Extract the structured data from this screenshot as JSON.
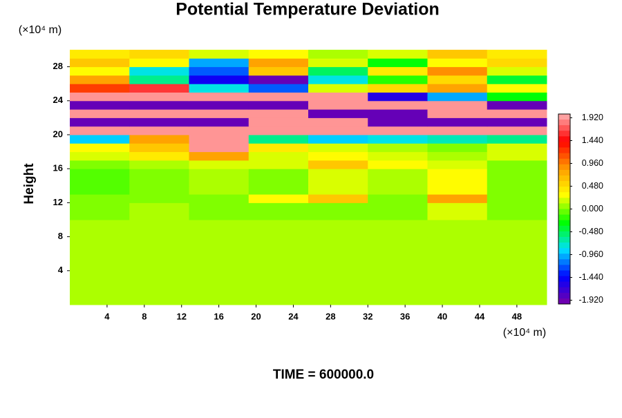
{
  "chart_data": {
    "type": "heatmap",
    "title": "Potential Temperature Deviation",
    "xlabel": "(×10⁴ m)",
    "ylabel": "Height",
    "yunit": "(×10⁴ m)",
    "footer": "TIME = 600000.0",
    "xlim": [
      0,
      51.2
    ],
    "ylim": [
      0,
      30
    ],
    "xticks": [
      4,
      8,
      12,
      16,
      20,
      24,
      28,
      32,
      36,
      40,
      44,
      48
    ],
    "yticks": [
      4,
      8,
      12,
      16,
      20,
      24,
      28
    ],
    "colormap": [
      "#7a00a8",
      "#0000ff",
      "#00e0ff",
      "#00ff00",
      "#ffff00",
      "#ff9900",
      "#ff0000",
      "#ffb4b4"
    ],
    "colorbar": {
      "lim": [
        -2.0,
        2.0
      ],
      "ticks": [
        {
          "value": 1.92,
          "label": "1.920"
        },
        {
          "value": 1.44,
          "label": "1.440"
        },
        {
          "value": 0.96,
          "label": "0.960"
        },
        {
          "value": 0.48,
          "label": "0.480"
        },
        {
          "value": 0,
          "label": "0.000"
        },
        {
          "value": -0.48,
          "label": "-0.480"
        },
        {
          "value": -0.96,
          "label": "-0.960"
        },
        {
          "value": -1.44,
          "label": "-1.440"
        },
        {
          "value": -1.92,
          "label": "-1.920"
        }
      ]
    },
    "z": [
      [
        0.1,
        0.1,
        0.1,
        0.1,
        0.1,
        0.1,
        0.1,
        0.1
      ],
      [
        0.1,
        0.1,
        0.1,
        0.1,
        0.1,
        0.1,
        0.1,
        0.1
      ],
      [
        0.1,
        0.1,
        0.1,
        0.1,
        0.1,
        0.1,
        0.1,
        0.1
      ],
      [
        0.1,
        0.1,
        0.1,
        0.1,
        0.1,
        0.1,
        0.1,
        0.1
      ],
      [
        0.1,
        0.1,
        0.1,
        0.1,
        0.1,
        0.1,
        0.1,
        0.1
      ],
      [
        0.1,
        0.1,
        0.1,
        0.1,
        0.1,
        0.1,
        0.1,
        0.1
      ],
      [
        0.1,
        0.1,
        0.1,
        0.1,
        0.1,
        0.1,
        0.1,
        0.1
      ],
      [
        0.1,
        0.1,
        0.1,
        0.1,
        0.1,
        0.1,
        0.1,
        0.1
      ],
      [
        0.1,
        0.1,
        0.1,
        0.1,
        0.1,
        0.1,
        0.1,
        0.1
      ],
      [
        0.1,
        0.1,
        0.1,
        0.1,
        0.1,
        0.1,
        0.1,
        0.1
      ],
      [
        0,
        0.1,
        0,
        0,
        0,
        0,
        0.2,
        0
      ],
      [
        0,
        0.1,
        0,
        0,
        0,
        0,
        0.2,
        0
      ],
      [
        0,
        0,
        0,
        0.3,
        0.6,
        0,
        0.8,
        0
      ],
      [
        -0.1,
        0,
        0.1,
        0,
        0.2,
        0.1,
        0.3,
        0
      ],
      [
        -0.1,
        0,
        0.1,
        0,
        0.2,
        0.1,
        0.3,
        0
      ],
      [
        -0.1,
        0,
        0.1,
        0,
        0.2,
        0.1,
        0.3,
        0
      ],
      [
        0,
        0.1,
        0.2,
        0.2,
        0.6,
        0.3,
        0.2,
        0
      ],
      [
        0.2,
        0.4,
        0.8,
        0.2,
        0.3,
        0.2,
        0.1,
        0.2
      ],
      [
        0.3,
        0.6,
        1.9,
        0.4,
        0.2,
        0.1,
        0,
        0.2
      ],
      [
        -0.9,
        0.8,
        1.9,
        -0.6,
        -0.9,
        -0.8,
        -0.7,
        -0.6
      ],
      [
        1.9,
        1.9,
        1.9,
        1.9,
        1.9,
        1.9,
        1.9,
        1.9
      ],
      [
        -1.9,
        -1.9,
        -1.9,
        1.9,
        1.9,
        -1.9,
        -1.9,
        -1.9
      ],
      [
        1.9,
        1.9,
        1.9,
        1.9,
        -1.9,
        -1.9,
        1.9,
        1.9
      ],
      [
        -1.9,
        -1.9,
        -1.9,
        -1.9,
        1.9,
        1.9,
        1.9,
        -1.9
      ],
      [
        1.9,
        1.9,
        1.9,
        1.9,
        1.9,
        -1.6,
        -1.0,
        -0.3
      ],
      [
        1.2,
        1.6,
        -0.8,
        -1.2,
        0.2,
        0.5,
        0.8,
        0.3
      ],
      [
        0.8,
        -0.6,
        -1.5,
        -1.9,
        -0.8,
        -0.2,
        0.5,
        -0.4
      ],
      [
        0.3,
        -0.8,
        -1.2,
        0.6,
        -0.5,
        0.4,
        0.9,
        0.2
      ],
      [
        0.6,
        0.3,
        -1.0,
        0.8,
        0.2,
        -0.3,
        0.3,
        0.5
      ],
      [
        0.4,
        0.5,
        0.2,
        0.3,
        0.1,
        0.2,
        0.6,
        0.4
      ]
    ]
  }
}
